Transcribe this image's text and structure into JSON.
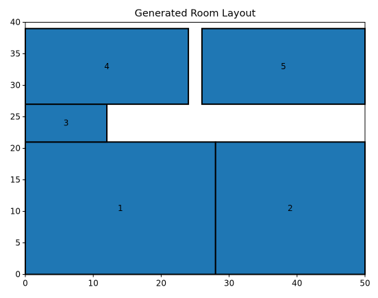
{
  "chart_data": {
    "type": "rectangles",
    "title": "Generated Room Layout",
    "xlabel": "",
    "ylabel": "",
    "xlim": [
      0,
      50
    ],
    "ylim": [
      0,
      40
    ],
    "xticks": [
      0,
      10,
      20,
      30,
      40,
      50
    ],
    "yticks": [
      0,
      5,
      10,
      15,
      20,
      25,
      30,
      35,
      40
    ],
    "grid": false,
    "fill_color": "#1f77b4",
    "edge_color": "#000000",
    "rooms": [
      {
        "label": "1",
        "x": 0,
        "y": 0,
        "width": 28,
        "height": 21
      },
      {
        "label": "2",
        "x": 28,
        "y": 0,
        "width": 22,
        "height": 21
      },
      {
        "label": "3",
        "x": 0,
        "y": 21,
        "width": 12,
        "height": 6
      },
      {
        "label": "4",
        "x": 0,
        "y": 27,
        "width": 24,
        "height": 12
      },
      {
        "label": "5",
        "x": 26,
        "y": 27,
        "width": 24,
        "height": 12
      }
    ]
  }
}
